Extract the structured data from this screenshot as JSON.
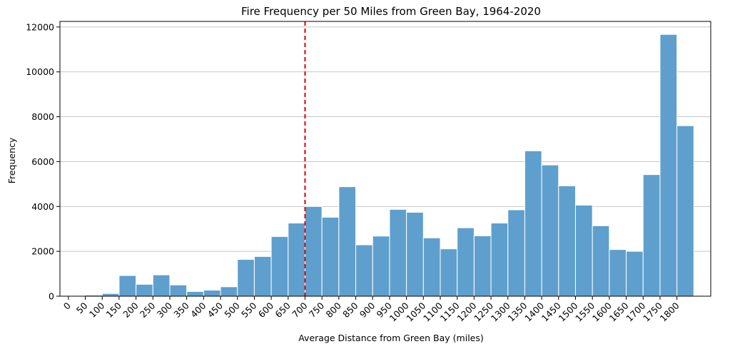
{
  "chart_data": {
    "type": "bar",
    "title": "Fire Frequency per 50 Miles from Green Bay, 1964-2020",
    "xlabel": "Average Distance from Green Bay (miles)",
    "ylabel": "Frequency",
    "bin_width": 50,
    "bin_edges": [
      50,
      100,
      150,
      200,
      250,
      300,
      350,
      400,
      450,
      500,
      550,
      600,
      650,
      700,
      750,
      800,
      850,
      900,
      950,
      1000,
      1050,
      1100,
      1150,
      1200,
      1250,
      1300,
      1350,
      1400,
      1450,
      1500,
      1550,
      1600,
      1650,
      1700,
      1750,
      1800,
      1850
    ],
    "values": [
      50,
      120,
      920,
      530,
      950,
      500,
      210,
      270,
      420,
      1640,
      1770,
      2660,
      3260,
      4000,
      3520,
      4880,
      2290,
      2680,
      3870,
      3740,
      2600,
      2110,
      3050,
      2690,
      3260,
      3850,
      6480,
      5850,
      4920,
      4060,
      3140,
      2080,
      2000,
      5420,
      11670,
      7600
    ],
    "x_ticks": [
      "0",
      "50",
      "100",
      "150",
      "200",
      "250",
      "300",
      "350",
      "400",
      "450",
      "500",
      "550",
      "600",
      "650",
      "700",
      "750",
      "800",
      "850",
      "900",
      "950",
      "1000",
      "1050",
      "1100",
      "1150",
      "1200",
      "1250",
      "1300",
      "1350",
      "1400",
      "1450",
      "1500",
      "1550",
      "1600",
      "1650",
      "1700",
      "1750",
      "1800"
    ],
    "y_ticks": [
      "0",
      "2000",
      "4000",
      "6000",
      "8000",
      "10000",
      "12000"
    ],
    "xlim": [
      -25,
      1900
    ],
    "ylim": [
      0,
      12250
    ],
    "reference_line_x": 700,
    "reference_line_color": "#e00000",
    "bar_color": "#5f9fcd",
    "grid": "horizontal"
  }
}
